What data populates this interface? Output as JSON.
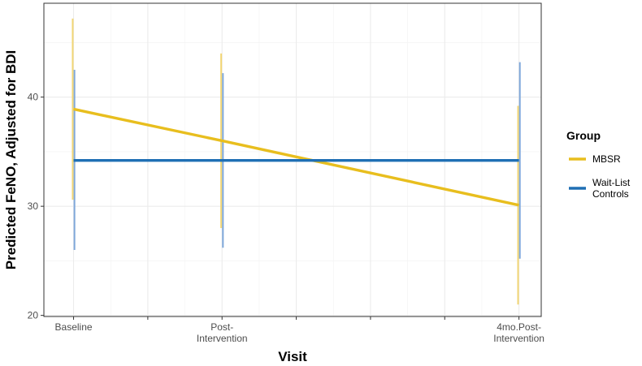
{
  "chart_data": {
    "type": "line",
    "xlabel": "Visit",
    "ylabel": "Predicted FeNO, Adjusted for BDI",
    "categories": [
      [
        "Baseline"
      ],
      [
        "Post-",
        "Intervention"
      ],
      [
        "4mo.Post-",
        "Intervention"
      ]
    ],
    "x_positions": [
      0,
      2,
      6
    ],
    "xlim": [
      -0.4,
      6.3
    ],
    "ylim": [
      19.9,
      48.6
    ],
    "yticks": [
      20,
      30,
      40
    ],
    "grid": true,
    "legend": {
      "title": "Group",
      "position": "right"
    },
    "series": [
      {
        "name": "MBSR",
        "color": "#E8BE1E",
        "errorbar_color": "#F2D675",
        "values": [
          38.9,
          36.0,
          30.1
        ],
        "lower": [
          30.6,
          28.0,
          21.0
        ],
        "upper": [
          47.2,
          44.0,
          39.2
        ]
      },
      {
        "name": "Wait-List Controls",
        "legend_lines": [
          "Wait-List",
          "Controls"
        ],
        "color": "#1F6FB4",
        "errorbar_color": "#7FA8DA",
        "values": [
          34.2,
          34.2,
          34.2
        ],
        "lower": [
          26.0,
          26.2,
          25.2
        ],
        "upper": [
          42.5,
          42.2,
          43.2
        ]
      }
    ]
  }
}
